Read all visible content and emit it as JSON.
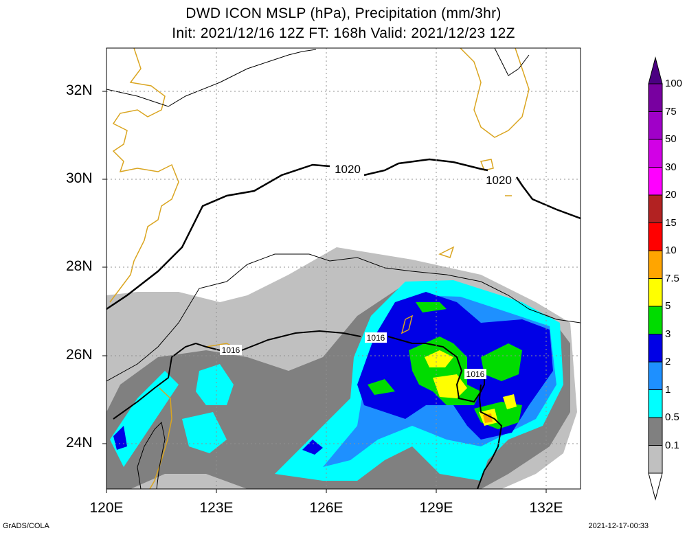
{
  "title": {
    "line1": "DWD ICON MSLP (hPa), Precipitation (mm/3hr)",
    "line2": "Init: 2021/12/16 12Z  FT: 168h  Valid: 2021/12/23 12Z"
  },
  "lat_ticks": [
    "32N",
    "30N",
    "28N",
    "26N",
    "24N"
  ],
  "lon_ticks": [
    "120E",
    "123E",
    "126E",
    "129E",
    "132E"
  ],
  "contour_labels": [
    "1020",
    "1020",
    "1016",
    "1016",
    "1016"
  ],
  "colorbar": {
    "labels": [
      "100",
      "75",
      "50",
      "30",
      "20",
      "15",
      "10",
      "7.5",
      "5",
      "3",
      "2",
      "1",
      "0.5",
      "0.1"
    ],
    "colors": [
      "#7800a0",
      "#a000c8",
      "#d200e6",
      "#ff00ff",
      "#b22222",
      "#ff0000",
      "#ffa500",
      "#ffff00",
      "#00dc00",
      "#0000e6",
      "#1e90ff",
      "#00ffff",
      "#808080",
      "#c0c0c0"
    ]
  },
  "footer": {
    "left": "GrADS/COLA",
    "right": "2021-12-17-00:33"
  }
}
